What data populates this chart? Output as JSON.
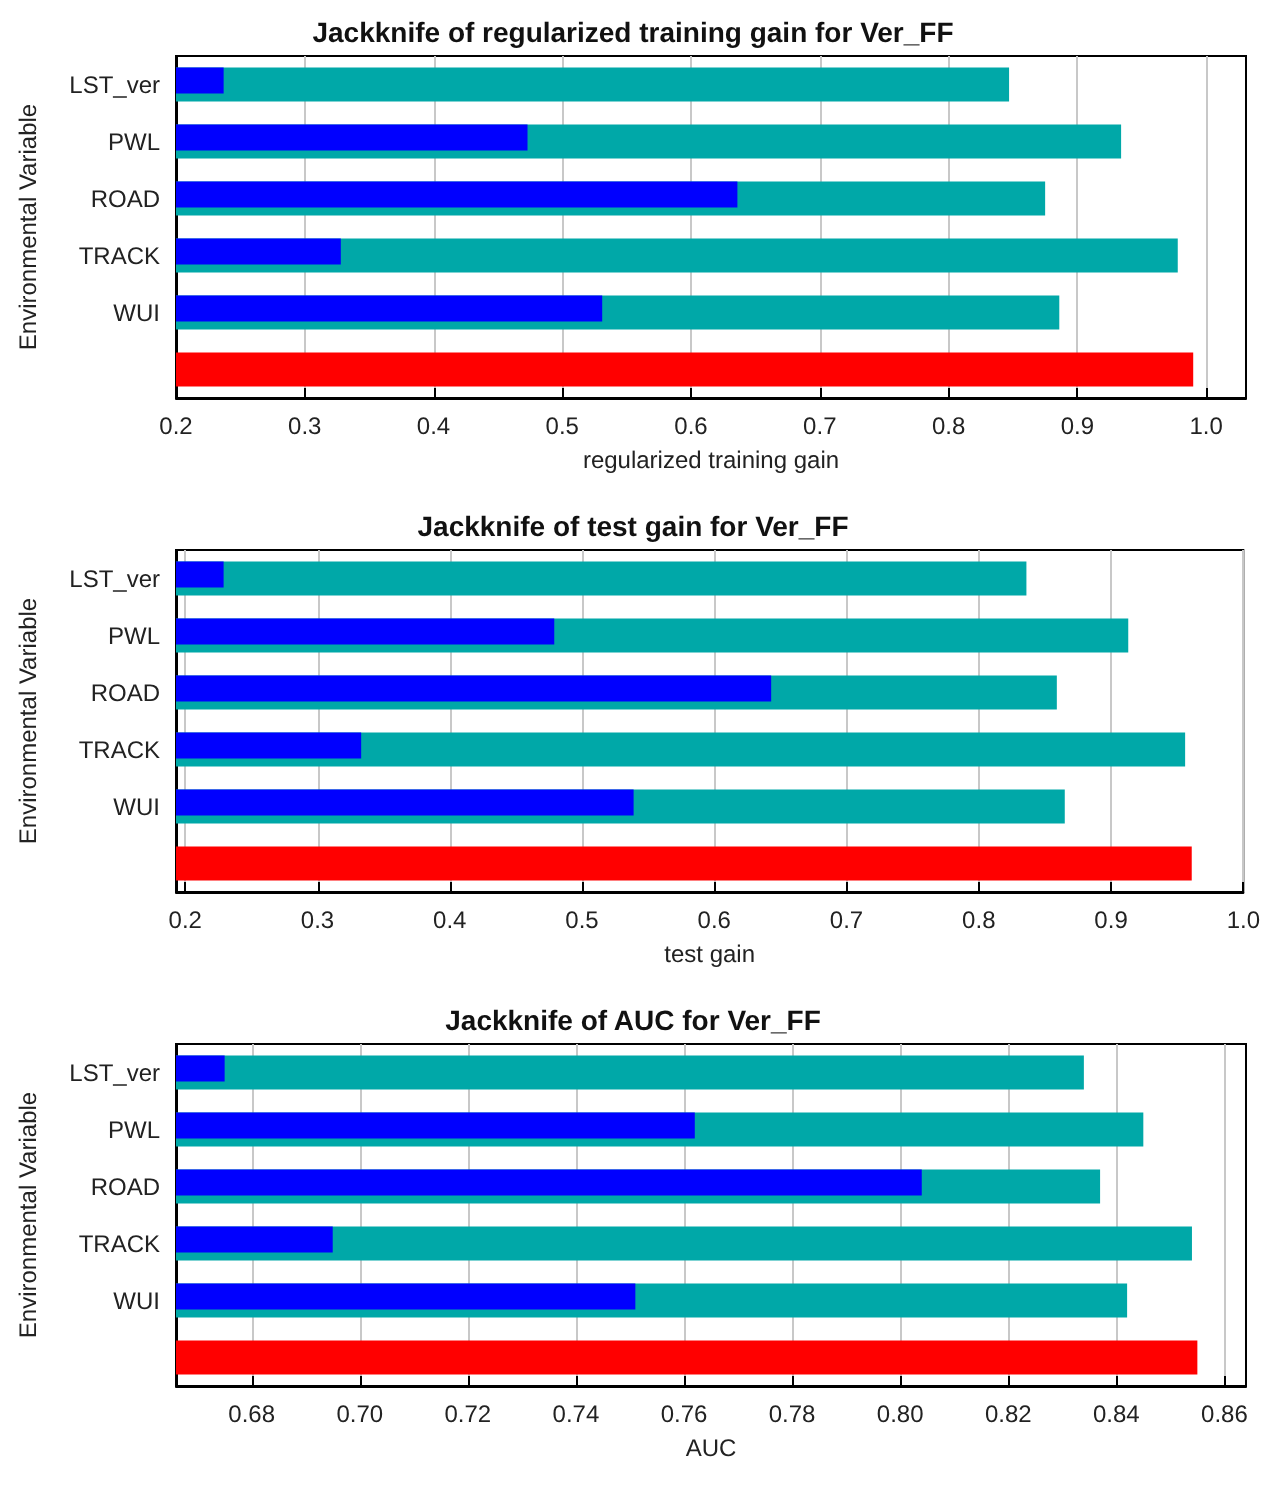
{
  "chart_data": [
    {
      "type": "bar",
      "orientation": "horizontal",
      "title": "Jackknife of regularized training gain for Ver_FF",
      "xlabel": "regularized training gain",
      "ylabel": "Environmental Variable",
      "categories": [
        "LST_ver",
        "PWL",
        "ROAD",
        "TRACK",
        "WUI",
        null
      ],
      "series": [
        {
          "color": "#00a8a8",
          "values": [
            0.847,
            0.934,
            0.875,
            0.978,
            0.886,
            null
          ]
        },
        {
          "color": "#0000ff",
          "values": [
            0.237,
            0.473,
            0.636,
            0.328,
            0.531,
            null
          ]
        },
        {
          "color": "#ff0000",
          "values": [
            null,
            null,
            null,
            null,
            null,
            0.99
          ]
        }
      ],
      "xlim": [
        0.2,
        1.031
      ],
      "xticks": [
        0.2,
        0.3,
        0.4,
        0.5,
        0.6,
        0.7,
        0.8,
        0.9,
        {
          "value": 1,
          "label": "1.0"
        }
      ],
      "grid": "x"
    },
    {
      "type": "bar",
      "orientation": "horizontal",
      "title": "Jackknife of test gain for Ver_FF",
      "xlabel": "test gain",
      "ylabel": "Environmental Variable",
      "categories": [
        "LST_ver",
        "PWL",
        "ROAD",
        "TRACK",
        "WUI",
        null
      ],
      "series": [
        {
          "color": "#00a8a8",
          "values": [
            0.836,
            0.913,
            0.859,
            0.956,
            0.865,
            null
          ]
        },
        {
          "color": "#0000ff",
          "values": [
            0.229,
            0.479,
            0.643,
            0.333,
            0.539,
            null
          ]
        },
        {
          "color": "#ff0000",
          "values": [
            null,
            null,
            null,
            null,
            null,
            0.961
          ]
        }
      ],
      "xlim": [
        0.193,
        1.0
      ],
      "xticks": [
        0.2,
        0.3,
        0.4,
        0.5,
        0.6,
        0.7,
        0.8,
        0.9,
        {
          "value": 1,
          "label": "1.0"
        }
      ],
      "grid": "x"
    },
    {
      "type": "bar",
      "orientation": "horizontal",
      "title": "Jackknife of AUC for Ver_FF",
      "xlabel": "AUC",
      "ylabel": "Environmental Variable",
      "categories": [
        "LST_ver",
        "PWL",
        "ROAD",
        "TRACK",
        "WUI",
        null
      ],
      "series": [
        {
          "color": "#00a8a8",
          "values": [
            0.834,
            0.845,
            0.837,
            0.854,
            0.842,
            null
          ]
        },
        {
          "color": "#0000ff",
          "values": [
            0.675,
            0.762,
            0.804,
            0.695,
            0.751,
            null
          ]
        },
        {
          "color": "#ff0000",
          "values": [
            null,
            null,
            null,
            null,
            null,
            0.855
          ]
        }
      ],
      "xlim": [
        0.666,
        0.864
      ],
      "xticks": [
        0.68,
        {
          "value": 0.7,
          "label": "0.70"
        },
        0.72,
        0.74,
        0.76,
        0.78,
        {
          "value": 0.8,
          "label": "0.80"
        },
        0.82,
        0.84,
        0.86
      ],
      "grid": "x"
    }
  ]
}
